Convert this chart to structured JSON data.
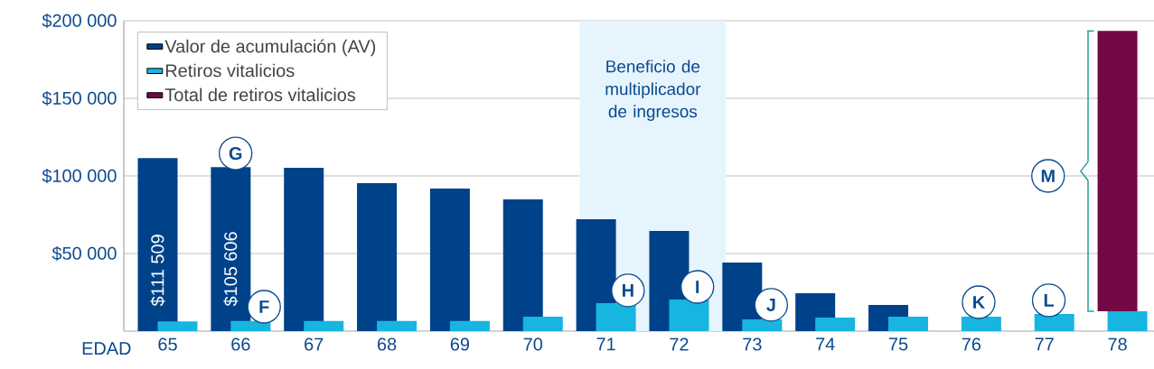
{
  "chart_data": {
    "type": "bar",
    "xlabel": "EDAD",
    "categories": [
      "65",
      "66",
      "67",
      "68",
      "69",
      "70",
      "71",
      "72",
      "73",
      "74",
      "75",
      "76",
      "77",
      "78"
    ],
    "series": [
      {
        "name": "Valor de acumulación (AV)",
        "color": "#00428a",
        "values": [
          111509,
          105606,
          105200,
          95300,
          91900,
          84900,
          72100,
          64500,
          44200,
          24400,
          16900,
          null,
          null,
          null
        ],
        "value_labels": [
          "$111 509",
          "$105 606",
          null,
          null,
          null,
          null,
          null,
          null,
          null,
          null,
          null,
          null,
          null,
          null
        ]
      },
      {
        "name": "Retiros vitalicios",
        "color": "#17b5e0",
        "values": [
          6200,
          6600,
          6600,
          6600,
          6600,
          9300,
          18000,
          20300,
          7500,
          8700,
          9300,
          9300,
          11000,
          12800
        ]
      },
      {
        "name": "Total de retiros vitalicios",
        "color": "#740846",
        "values": [
          null,
          null,
          null,
          null,
          null,
          null,
          null,
          null,
          null,
          null,
          null,
          null,
          null,
          180600
        ],
        "base": [
          null,
          null,
          null,
          null,
          null,
          null,
          null,
          null,
          null,
          null,
          null,
          null,
          null,
          12800
        ]
      }
    ],
    "ylim": [
      0,
      200000
    ],
    "yticks": [
      {
        "value": 50000,
        "label": "$50 000"
      },
      {
        "value": 100000,
        "label": "$100 000"
      },
      {
        "value": 150000,
        "label": "$150 000"
      },
      {
        "value": 200000,
        "label": "$200 000"
      }
    ],
    "grid": "y",
    "legend": "top left",
    "bands": [
      {
        "axis": "x",
        "from": "71",
        "to": "72",
        "label": "Beneficio de multiplicador de ingresos",
        "color": "#e6f5fd"
      }
    ],
    "annotations": [
      "G",
      "F",
      "H",
      "I",
      "J",
      "K",
      "L",
      "M"
    ]
  }
}
